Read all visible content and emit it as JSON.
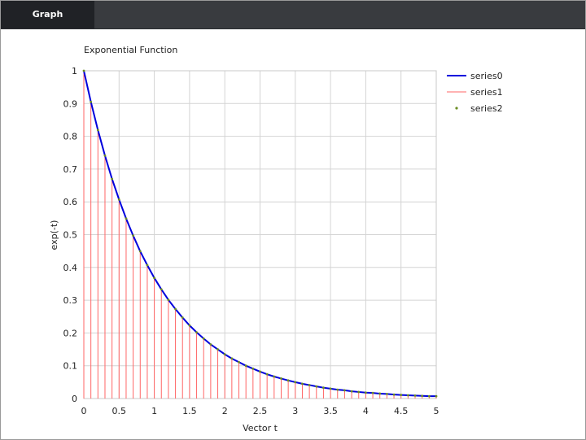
{
  "tabs": [
    {
      "label": "Graph",
      "active": true
    }
  ],
  "chart_data": {
    "type": "line",
    "title": "Exponential Function",
    "xlabel": "Vector t",
    "ylabel": "exp(-t)",
    "xlim": [
      0,
      5
    ],
    "ylim": [
      0,
      1
    ],
    "xticks": [
      0,
      0.5,
      1,
      1.5,
      2,
      2.5,
      3,
      3.5,
      4,
      4.5,
      5
    ],
    "xtick_labels": [
      "0",
      "0.5",
      "1",
      "1.5",
      "2",
      "2.5",
      "3",
      "3.5",
      "4",
      "4.5",
      "5"
    ],
    "yticks": [
      0,
      0.1,
      0.2,
      0.3,
      0.4,
      0.5,
      0.6,
      0.7,
      0.8,
      0.9,
      1
    ],
    "ytick_labels": [
      "0",
      "0.1",
      "0.2",
      "0.3",
      "0.4",
      "0.5",
      "0.6",
      "0.7",
      "0.8",
      "0.9",
      "1"
    ],
    "grid": true,
    "legend_position": "top-right-outside",
    "x": [
      0,
      0.1,
      0.2,
      0.3,
      0.4,
      0.5,
      0.6,
      0.7,
      0.8,
      0.9,
      1.0,
      1.1,
      1.2,
      1.3,
      1.4,
      1.5,
      1.6,
      1.7,
      1.8,
      1.9,
      2.0,
      2.1,
      2.2,
      2.3,
      2.4,
      2.5,
      2.6,
      2.7,
      2.8,
      2.9,
      3.0,
      3.1,
      3.2,
      3.3,
      3.4,
      3.5,
      3.6,
      3.7,
      3.8,
      3.9,
      4.0,
      4.1,
      4.2,
      4.3,
      4.4,
      4.5,
      4.6,
      4.7,
      4.8,
      4.9,
      5.0
    ],
    "y": [
      1.0,
      0.905,
      0.819,
      0.741,
      0.67,
      0.607,
      0.549,
      0.497,
      0.449,
      0.407,
      0.368,
      0.333,
      0.301,
      0.273,
      0.247,
      0.223,
      0.202,
      0.183,
      0.165,
      0.15,
      0.135,
      0.122,
      0.111,
      0.1,
      0.091,
      0.082,
      0.074,
      0.067,
      0.061,
      0.055,
      0.05,
      0.045,
      0.041,
      0.037,
      0.033,
      0.03,
      0.027,
      0.025,
      0.022,
      0.02,
      0.018,
      0.017,
      0.015,
      0.014,
      0.012,
      0.011,
      0.01,
      0.009,
      0.008,
      0.007,
      0.007
    ],
    "series": [
      {
        "name": "series0",
        "kind": "line",
        "color": "#0000dd"
      },
      {
        "name": "series1",
        "kind": "stem",
        "color": "#ff6666"
      },
      {
        "name": "series2",
        "kind": "marker",
        "color": "#6b8e23"
      }
    ]
  }
}
